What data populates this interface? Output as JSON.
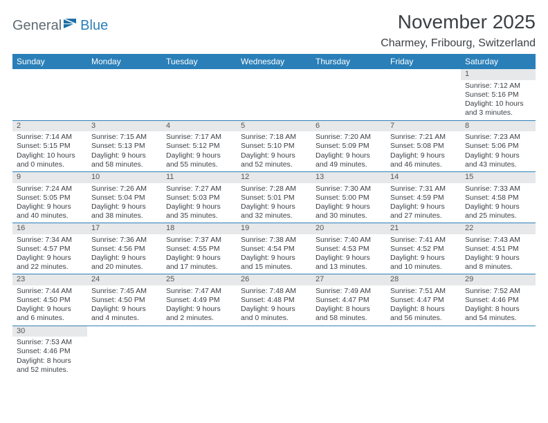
{
  "logo": {
    "text1": "General",
    "text2": "Blue"
  },
  "title": "November 2025",
  "location": "Charmey, Fribourg, Switzerland",
  "colors": {
    "header_bg": "#2a7fb8",
    "header_text": "#ffffff",
    "daynum_bg": "#e7e8e9",
    "text": "#3a3f44",
    "row_border": "#2a7fb8"
  },
  "typography": {
    "title_fontsize": 28,
    "location_fontsize": 16,
    "header_fontsize": 12,
    "cell_fontsize": 10.5
  },
  "day_headers": [
    "Sunday",
    "Monday",
    "Tuesday",
    "Wednesday",
    "Thursday",
    "Friday",
    "Saturday"
  ],
  "weeks": [
    [
      null,
      null,
      null,
      null,
      null,
      null,
      {
        "n": "1",
        "sr": "Sunrise: 7:12 AM",
        "ss": "Sunset: 5:16 PM",
        "d1": "Daylight: 10 hours",
        "d2": "and 3 minutes."
      }
    ],
    [
      {
        "n": "2",
        "sr": "Sunrise: 7:14 AM",
        "ss": "Sunset: 5:15 PM",
        "d1": "Daylight: 10 hours",
        "d2": "and 0 minutes."
      },
      {
        "n": "3",
        "sr": "Sunrise: 7:15 AM",
        "ss": "Sunset: 5:13 PM",
        "d1": "Daylight: 9 hours",
        "d2": "and 58 minutes."
      },
      {
        "n": "4",
        "sr": "Sunrise: 7:17 AM",
        "ss": "Sunset: 5:12 PM",
        "d1": "Daylight: 9 hours",
        "d2": "and 55 minutes."
      },
      {
        "n": "5",
        "sr": "Sunrise: 7:18 AM",
        "ss": "Sunset: 5:10 PM",
        "d1": "Daylight: 9 hours",
        "d2": "and 52 minutes."
      },
      {
        "n": "6",
        "sr": "Sunrise: 7:20 AM",
        "ss": "Sunset: 5:09 PM",
        "d1": "Daylight: 9 hours",
        "d2": "and 49 minutes."
      },
      {
        "n": "7",
        "sr": "Sunrise: 7:21 AM",
        "ss": "Sunset: 5:08 PM",
        "d1": "Daylight: 9 hours",
        "d2": "and 46 minutes."
      },
      {
        "n": "8",
        "sr": "Sunrise: 7:23 AM",
        "ss": "Sunset: 5:06 PM",
        "d1": "Daylight: 9 hours",
        "d2": "and 43 minutes."
      }
    ],
    [
      {
        "n": "9",
        "sr": "Sunrise: 7:24 AM",
        "ss": "Sunset: 5:05 PM",
        "d1": "Daylight: 9 hours",
        "d2": "and 40 minutes."
      },
      {
        "n": "10",
        "sr": "Sunrise: 7:26 AM",
        "ss": "Sunset: 5:04 PM",
        "d1": "Daylight: 9 hours",
        "d2": "and 38 minutes."
      },
      {
        "n": "11",
        "sr": "Sunrise: 7:27 AM",
        "ss": "Sunset: 5:03 PM",
        "d1": "Daylight: 9 hours",
        "d2": "and 35 minutes."
      },
      {
        "n": "12",
        "sr": "Sunrise: 7:28 AM",
        "ss": "Sunset: 5:01 PM",
        "d1": "Daylight: 9 hours",
        "d2": "and 32 minutes."
      },
      {
        "n": "13",
        "sr": "Sunrise: 7:30 AM",
        "ss": "Sunset: 5:00 PM",
        "d1": "Daylight: 9 hours",
        "d2": "and 30 minutes."
      },
      {
        "n": "14",
        "sr": "Sunrise: 7:31 AM",
        "ss": "Sunset: 4:59 PM",
        "d1": "Daylight: 9 hours",
        "d2": "and 27 minutes."
      },
      {
        "n": "15",
        "sr": "Sunrise: 7:33 AM",
        "ss": "Sunset: 4:58 PM",
        "d1": "Daylight: 9 hours",
        "d2": "and 25 minutes."
      }
    ],
    [
      {
        "n": "16",
        "sr": "Sunrise: 7:34 AM",
        "ss": "Sunset: 4:57 PM",
        "d1": "Daylight: 9 hours",
        "d2": "and 22 minutes."
      },
      {
        "n": "17",
        "sr": "Sunrise: 7:36 AM",
        "ss": "Sunset: 4:56 PM",
        "d1": "Daylight: 9 hours",
        "d2": "and 20 minutes."
      },
      {
        "n": "18",
        "sr": "Sunrise: 7:37 AM",
        "ss": "Sunset: 4:55 PM",
        "d1": "Daylight: 9 hours",
        "d2": "and 17 minutes."
      },
      {
        "n": "19",
        "sr": "Sunrise: 7:38 AM",
        "ss": "Sunset: 4:54 PM",
        "d1": "Daylight: 9 hours",
        "d2": "and 15 minutes."
      },
      {
        "n": "20",
        "sr": "Sunrise: 7:40 AM",
        "ss": "Sunset: 4:53 PM",
        "d1": "Daylight: 9 hours",
        "d2": "and 13 minutes."
      },
      {
        "n": "21",
        "sr": "Sunrise: 7:41 AM",
        "ss": "Sunset: 4:52 PM",
        "d1": "Daylight: 9 hours",
        "d2": "and 10 minutes."
      },
      {
        "n": "22",
        "sr": "Sunrise: 7:43 AM",
        "ss": "Sunset: 4:51 PM",
        "d1": "Daylight: 9 hours",
        "d2": "and 8 minutes."
      }
    ],
    [
      {
        "n": "23",
        "sr": "Sunrise: 7:44 AM",
        "ss": "Sunset: 4:50 PM",
        "d1": "Daylight: 9 hours",
        "d2": "and 6 minutes."
      },
      {
        "n": "24",
        "sr": "Sunrise: 7:45 AM",
        "ss": "Sunset: 4:50 PM",
        "d1": "Daylight: 9 hours",
        "d2": "and 4 minutes."
      },
      {
        "n": "25",
        "sr": "Sunrise: 7:47 AM",
        "ss": "Sunset: 4:49 PM",
        "d1": "Daylight: 9 hours",
        "d2": "and 2 minutes."
      },
      {
        "n": "26",
        "sr": "Sunrise: 7:48 AM",
        "ss": "Sunset: 4:48 PM",
        "d1": "Daylight: 9 hours",
        "d2": "and 0 minutes."
      },
      {
        "n": "27",
        "sr": "Sunrise: 7:49 AM",
        "ss": "Sunset: 4:47 PM",
        "d1": "Daylight: 8 hours",
        "d2": "and 58 minutes."
      },
      {
        "n": "28",
        "sr": "Sunrise: 7:51 AM",
        "ss": "Sunset: 4:47 PM",
        "d1": "Daylight: 8 hours",
        "d2": "and 56 minutes."
      },
      {
        "n": "29",
        "sr": "Sunrise: 7:52 AM",
        "ss": "Sunset: 4:46 PM",
        "d1": "Daylight: 8 hours",
        "d2": "and 54 minutes."
      }
    ],
    [
      {
        "n": "30",
        "sr": "Sunrise: 7:53 AM",
        "ss": "Sunset: 4:46 PM",
        "d1": "Daylight: 8 hours",
        "d2": "and 52 minutes."
      },
      null,
      null,
      null,
      null,
      null,
      null
    ]
  ]
}
